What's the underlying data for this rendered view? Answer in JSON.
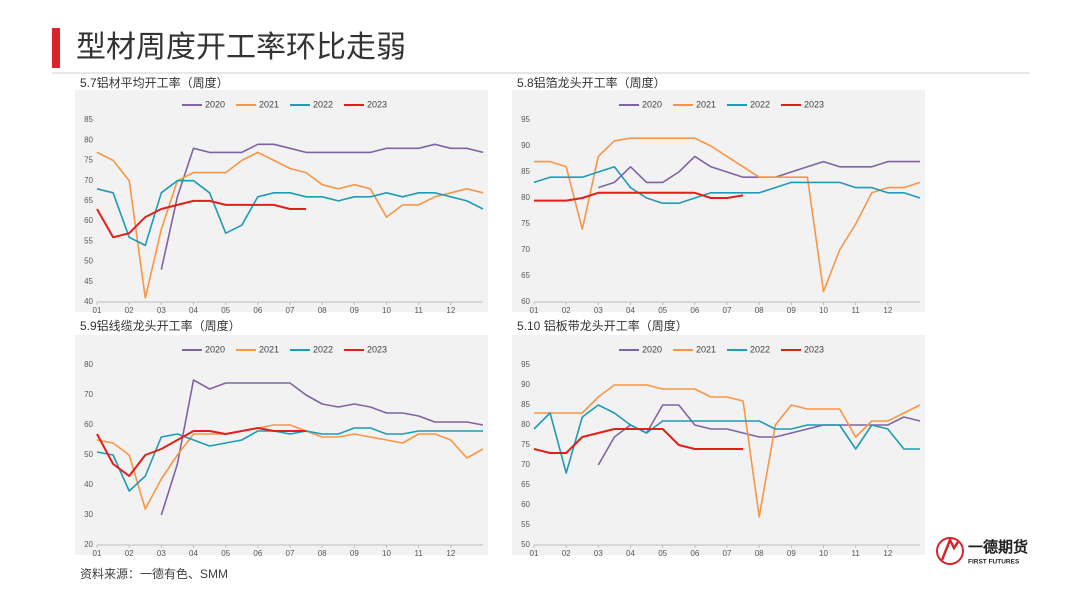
{
  "header": {
    "title": "型材周度开工率环比走弱"
  },
  "chart_data": [
    {
      "type": "line",
      "title": "5.7铝材平均开工率（周度）",
      "x": [
        1,
        1.5,
        2,
        2.5,
        3,
        3.5,
        4,
        4.5,
        5,
        5.5,
        6,
        6.5,
        7,
        7.5,
        8,
        8.5,
        9,
        9.5,
        10,
        10.5,
        11,
        11.5,
        12,
        12.5,
        13
      ],
      "xlim": [
        1,
        13
      ],
      "xticks": [
        {
          "value": 1,
          "label": "01"
        },
        {
          "value": 2,
          "label": "02"
        },
        {
          "value": 3,
          "label": "03"
        },
        {
          "value": 4,
          "label": "04"
        },
        {
          "value": 5,
          "label": "05"
        },
        {
          "value": 6,
          "label": "06"
        },
        {
          "value": 7,
          "label": "07"
        },
        {
          "value": 8,
          "label": "08"
        },
        {
          "value": 9,
          "label": "09"
        },
        {
          "value": 10,
          "label": "10"
        },
        {
          "value": 11,
          "label": "11"
        },
        {
          "value": 12,
          "label": "12"
        }
      ],
      "ylim": [
        40,
        85
      ],
      "yticks": [
        40,
        45,
        50,
        55,
        60,
        65,
        70,
        75,
        80,
        85
      ],
      "series": [
        {
          "name": "2020",
          "color": "#8064a2",
          "values": [
            null,
            null,
            null,
            null,
            48,
            66,
            78,
            77,
            77,
            77,
            79,
            79,
            78,
            77,
            77,
            77,
            77,
            77,
            78,
            78,
            78,
            79,
            78,
            78,
            77
          ]
        },
        {
          "name": "2021",
          "color": "#f79646",
          "values": [
            77,
            75,
            70,
            41,
            58,
            70,
            72,
            72,
            72,
            75,
            77,
            75,
            73,
            72,
            69,
            68,
            69,
            68,
            61,
            64,
            64,
            66,
            67,
            68,
            67
          ]
        },
        {
          "name": "2022",
          "color": "#1f9bb5",
          "values": [
            68,
            67,
            56,
            54,
            67,
            70,
            70,
            67,
            57,
            59,
            66,
            67,
            67,
            66,
            66,
            65,
            66,
            66,
            67,
            66,
            67,
            67,
            66,
            65,
            63
          ]
        },
        {
          "name": "2023",
          "color": "#e0201b",
          "values": [
            63,
            56,
            57,
            61,
            63,
            64,
            65,
            65,
            64,
            64,
            64,
            64,
            63,
            63,
            null,
            null,
            null,
            null,
            null,
            null,
            null,
            null,
            null,
            null,
            null
          ]
        }
      ]
    },
    {
      "type": "line",
      "title": "5.8铝箔龙头开工率（周度）",
      "x": [
        1,
        1.5,
        2,
        2.5,
        3,
        3.5,
        4,
        4.5,
        5,
        5.5,
        6,
        6.5,
        7,
        7.5,
        8,
        8.5,
        9,
        9.5,
        10,
        10.5,
        11,
        11.5,
        12,
        12.5,
        13
      ],
      "xlim": [
        1,
        13
      ],
      "xticks": [
        {
          "value": 1,
          "label": "01"
        },
        {
          "value": 2,
          "label": "02"
        },
        {
          "value": 3,
          "label": "03"
        },
        {
          "value": 4,
          "label": "04"
        },
        {
          "value": 5,
          "label": "05"
        },
        {
          "value": 6,
          "label": "06"
        },
        {
          "value": 7,
          "label": "07"
        },
        {
          "value": 8,
          "label": "08"
        },
        {
          "value": 9,
          "label": "09"
        },
        {
          "value": 10,
          "label": "10"
        },
        {
          "value": 11,
          "label": "11"
        },
        {
          "value": 12,
          "label": "12"
        }
      ],
      "ylim": [
        60,
        95
      ],
      "yticks": [
        60,
        65,
        70,
        75,
        80,
        85,
        90,
        95
      ],
      "series": [
        {
          "name": "2020",
          "color": "#8064a2",
          "values": [
            null,
            null,
            null,
            null,
            82,
            83,
            86,
            83,
            83,
            85,
            88,
            86,
            85,
            84,
            84,
            84,
            85,
            86,
            87,
            86,
            86,
            86,
            87,
            87,
            87
          ]
        },
        {
          "name": "2021",
          "color": "#f79646",
          "values": [
            87,
            87,
            86,
            74,
            88,
            91,
            91.5,
            91.5,
            91.5,
            91.5,
            91.5,
            90,
            88,
            86,
            84,
            84,
            84,
            84,
            62,
            70,
            75,
            81,
            82,
            82,
            83
          ]
        },
        {
          "name": "2022",
          "color": "#1f9bb5",
          "values": [
            83,
            84,
            84,
            84,
            85,
            86,
            82,
            80,
            79,
            79,
            80,
            81,
            81,
            81,
            81,
            82,
            83,
            83,
            83,
            83,
            82,
            82,
            81,
            81,
            80
          ]
        },
        {
          "name": "2023",
          "color": "#e0201b",
          "values": [
            79.5,
            79.5,
            79.5,
            80,
            81,
            81,
            81,
            81,
            81,
            81,
            81,
            80,
            80,
            80.5,
            null,
            null,
            null,
            null,
            null,
            null,
            null,
            null,
            null,
            null,
            null
          ]
        }
      ]
    },
    {
      "type": "line",
      "title": "5.9铝线缆龙头开工率（周度）",
      "x": [
        1,
        1.5,
        2,
        2.5,
        3,
        3.5,
        4,
        4.5,
        5,
        5.5,
        6,
        6.5,
        7,
        7.5,
        8,
        8.5,
        9,
        9.5,
        10,
        10.5,
        11,
        11.5,
        12,
        12.5,
        13
      ],
      "xlim": [
        1,
        13
      ],
      "xticks": [
        {
          "value": 1,
          "label": "01"
        },
        {
          "value": 2,
          "label": "02"
        },
        {
          "value": 3,
          "label": "03"
        },
        {
          "value": 4,
          "label": "04"
        },
        {
          "value": 5,
          "label": "05"
        },
        {
          "value": 6,
          "label": "06"
        },
        {
          "value": 7,
          "label": "07"
        },
        {
          "value": 8,
          "label": "08"
        },
        {
          "value": 9,
          "label": "09"
        },
        {
          "value": 10,
          "label": "10"
        },
        {
          "value": 11,
          "label": "11"
        },
        {
          "value": 12,
          "label": "12"
        }
      ],
      "ylim": [
        20,
        80
      ],
      "yticks": [
        20,
        30,
        40,
        50,
        60,
        70,
        80
      ],
      "series": [
        {
          "name": "2020",
          "color": "#8064a2",
          "values": [
            null,
            null,
            null,
            null,
            30,
            47,
            75,
            72,
            74,
            74,
            74,
            74,
            74,
            70,
            67,
            66,
            67,
            66,
            64,
            64,
            63,
            61,
            61,
            61,
            60
          ]
        },
        {
          "name": "2021",
          "color": "#f79646",
          "values": [
            55,
            54,
            50,
            32,
            42,
            50,
            57,
            57,
            57,
            58,
            59,
            60,
            60,
            58,
            56,
            56,
            57,
            56,
            55,
            54,
            57,
            57,
            55,
            49,
            52
          ]
        },
        {
          "name": "2022",
          "color": "#1f9bb5",
          "values": [
            51,
            50,
            38,
            43,
            56,
            57,
            55,
            53,
            54,
            55,
            58,
            58,
            57,
            58,
            57,
            57,
            59,
            59,
            57,
            57,
            58,
            58,
            58,
            58,
            58
          ]
        },
        {
          "name": "2023",
          "color": "#e0201b",
          "values": [
            57,
            47,
            43,
            50,
            52,
            55,
            58,
            58,
            57,
            58,
            59,
            58,
            58,
            58,
            null,
            null,
            null,
            null,
            null,
            null,
            null,
            null,
            null,
            null,
            null
          ]
        }
      ]
    },
    {
      "type": "line",
      "title": "5.10 铝板带龙头开工率（周度）",
      "x": [
        1,
        1.5,
        2,
        2.5,
        3,
        3.5,
        4,
        4.5,
        5,
        5.5,
        6,
        6.5,
        7,
        7.5,
        8,
        8.5,
        9,
        9.5,
        10,
        10.5,
        11,
        11.5,
        12,
        12.5,
        13
      ],
      "xlim": [
        1,
        13
      ],
      "xticks": [
        {
          "value": 1,
          "label": "01"
        },
        {
          "value": 2,
          "label": "02"
        },
        {
          "value": 3,
          "label": "03"
        },
        {
          "value": 4,
          "label": "04"
        },
        {
          "value": 5,
          "label": "05"
        },
        {
          "value": 6,
          "label": "06"
        },
        {
          "value": 7,
          "label": "07"
        },
        {
          "value": 8,
          "label": "08"
        },
        {
          "value": 9,
          "label": "09"
        },
        {
          "value": 10,
          "label": "10"
        },
        {
          "value": 11,
          "label": "11"
        },
        {
          "value": 12,
          "label": "12"
        }
      ],
      "ylim": [
        50,
        95
      ],
      "yticks": [
        50,
        55,
        60,
        65,
        70,
        75,
        80,
        85,
        90,
        95
      ],
      "series": [
        {
          "name": "2020",
          "color": "#8064a2",
          "values": [
            null,
            null,
            null,
            null,
            70,
            77,
            80,
            78,
            85,
            85,
            80,
            79,
            79,
            78,
            77,
            77,
            78,
            79,
            80,
            80,
            80,
            80,
            80,
            82,
            81
          ]
        },
        {
          "name": "2021",
          "color": "#f79646",
          "values": [
            83,
            83,
            83,
            83,
            87,
            90,
            90,
            90,
            89,
            89,
            89,
            87,
            87,
            86,
            57,
            80,
            85,
            84,
            84,
            84,
            77,
            81,
            81,
            83,
            85
          ]
        },
        {
          "name": "2022",
          "color": "#1f9bb5",
          "values": [
            79,
            83,
            68,
            82,
            85,
            83,
            80,
            78,
            81,
            81,
            81,
            81,
            81,
            81,
            81,
            79,
            79,
            80,
            80,
            80,
            74,
            80,
            79,
            74,
            74
          ]
        },
        {
          "name": "2023",
          "color": "#e0201b",
          "values": [
            74,
            73,
            73,
            77,
            78,
            79,
            79,
            79,
            79,
            75,
            74,
            74,
            74,
            74,
            null,
            null,
            null,
            null,
            null,
            null,
            null,
            null,
            null,
            null,
            null
          ]
        }
      ]
    }
  ],
  "footer": {
    "source": "资料来源：一德有色、SMM",
    "logo_name": "一德期货",
    "logo_tagline": "FIRST FUTURES"
  }
}
